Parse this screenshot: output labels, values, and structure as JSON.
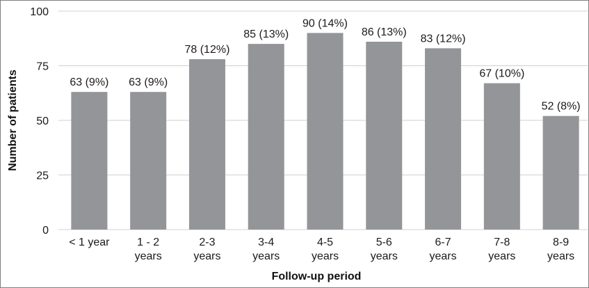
{
  "chart_data": {
    "type": "bar",
    "title": "",
    "xlabel": "Follow-up period",
    "ylabel": "Number of patients",
    "ylim": [
      0,
      100
    ],
    "yticks": [
      0,
      25,
      50,
      75,
      100
    ],
    "grid": true,
    "legend": "none",
    "categories": [
      [
        "< 1 year"
      ],
      [
        "1 - 2",
        "years"
      ],
      [
        "2-3",
        "years"
      ],
      [
        "3-4",
        "years"
      ],
      [
        "4-5",
        "years"
      ],
      [
        "5-6",
        "years"
      ],
      [
        "6-7",
        "years"
      ],
      [
        "7-8",
        "years"
      ],
      [
        "8-9",
        "years"
      ]
    ],
    "values": [
      63,
      63,
      78,
      85,
      90,
      86,
      83,
      67,
      52
    ],
    "data_labels": [
      "63 (9%)",
      "63 (9%)",
      "78 (12%)",
      "85 (13%)",
      "90 (14%)",
      "86 (13%)",
      "83 (12%)",
      "67 (10%)",
      "52 (8%)"
    ],
    "colors": {
      "bar": "#939598",
      "grid": "#d0d0d0",
      "text": "#1a1a1a"
    }
  }
}
